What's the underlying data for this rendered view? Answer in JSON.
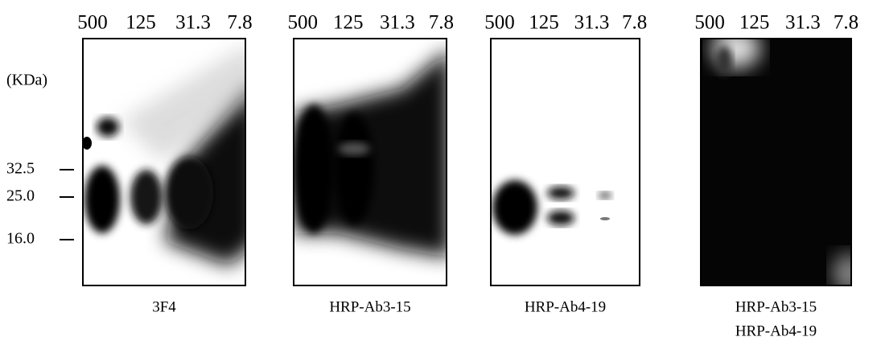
{
  "markers": {
    "unit": "(KDa)",
    "labels": [
      "32.5",
      "25.0",
      "16.0"
    ]
  },
  "panels": [
    {
      "lanes": [
        "500",
        "125",
        "31.3",
        "7.8"
      ],
      "caption": [
        "3F4"
      ]
    },
    {
      "lanes": [
        "500",
        "125",
        "31.3",
        "7.8"
      ],
      "caption": [
        "HRP-Ab3-15"
      ]
    },
    {
      "lanes": [
        "500",
        "125",
        "31.3",
        "7.8"
      ],
      "caption": [
        "HRP-Ab4-19"
      ]
    },
    {
      "lanes": [
        "500",
        "125",
        "31.3",
        "7.8"
      ],
      "caption": [
        "HRP-Ab3-15",
        "HRP-Ab4-19"
      ]
    }
  ]
}
